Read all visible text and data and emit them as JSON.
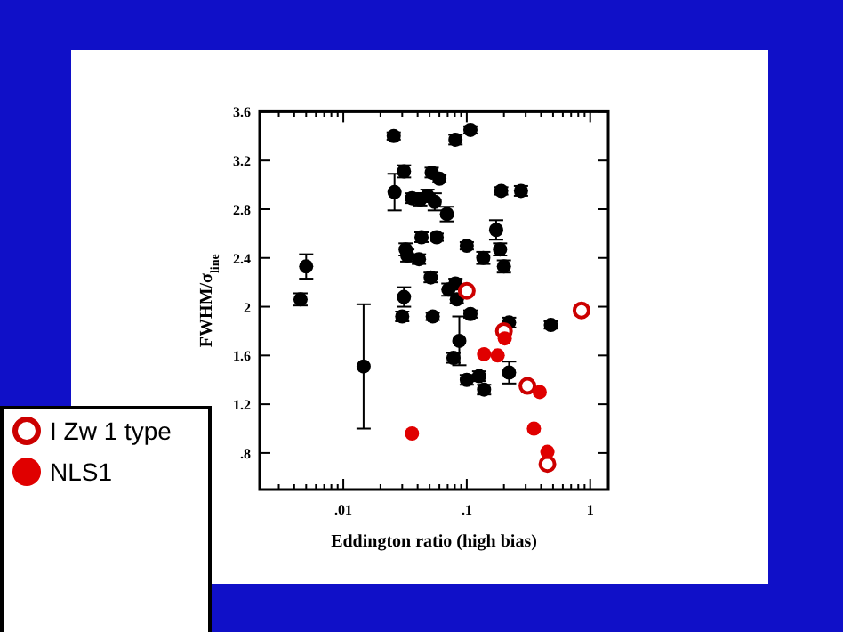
{
  "chart_data": {
    "type": "scatter",
    "xlabel": "Eddington ratio (high bias)",
    "ylabel": "FWHM/σ$_{line}$",
    "log": "x",
    "marker": "circle",
    "legend": "bottom left",
    "grid": false,
    "xlim": [
      0.0021,
      1.4
    ],
    "ylim": [
      0.5,
      3.6
    ],
    "xticks": [
      {
        "value": 0.003,
        "label": null
      },
      {
        "value": 0.004,
        "label": null
      },
      {
        "value": 0.005,
        "label": null
      },
      {
        "value": 0.006,
        "label": null
      },
      {
        "value": 0.007,
        "label": null
      },
      {
        "value": 0.008,
        "label": null
      },
      {
        "value": 0.009,
        "label": null
      },
      {
        "value": 0.01,
        "label": ".01"
      },
      {
        "value": 0.02,
        "label": null
      },
      {
        "value": 0.03,
        "label": null
      },
      {
        "value": 0.04,
        "label": null
      },
      {
        "value": 0.05,
        "label": null
      },
      {
        "value": 0.06,
        "label": null
      },
      {
        "value": 0.07,
        "label": null
      },
      {
        "value": 0.08,
        "label": null
      },
      {
        "value": 0.09,
        "label": null
      },
      {
        "value": 0.1,
        "label": ".1"
      },
      {
        "value": 0.2,
        "label": null
      },
      {
        "value": 0.3,
        "label": null
      },
      {
        "value": 0.4,
        "label": null
      },
      {
        "value": 0.5,
        "label": null
      },
      {
        "value": 0.6,
        "label": null
      },
      {
        "value": 0.7,
        "label": null
      },
      {
        "value": 0.8,
        "label": null
      },
      {
        "value": 0.9,
        "label": null
      },
      {
        "value": 1,
        "label": "1"
      }
    ],
    "yticks": [
      {
        "value": 0.8,
        "label": ".8"
      },
      1.2,
      1.6,
      2,
      2.4,
      2.8,
      3.2,
      3.6
    ],
    "series": [
      {
        "color": "#000000",
        "x": [
          0.0045,
          0.005,
          0.0146,
          0.0256,
          0.026,
          0.031,
          0.032,
          0.033,
          0.031,
          0.03,
          0.036,
          0.042,
          0.048,
          0.055,
          0.043,
          0.041,
          0.051,
          0.057,
          0.052,
          0.06,
          0.053,
          0.069,
          0.081,
          0.107,
          0.071,
          0.081,
          0.083,
          0.1,
          0.107,
          0.087,
          0.078,
          0.136,
          0.173,
          0.186,
          0.2,
          0.19,
          0.275,
          0.22,
          0.48,
          0.1,
          0.126,
          0.138,
          0.22
        ],
        "values": [
          2.06,
          2.33,
          1.51,
          3.4,
          2.94,
          3.11,
          2.47,
          2.42,
          2.08,
          1.92,
          2.89,
          2.88,
          2.91,
          2.86,
          2.57,
          2.39,
          2.24,
          2.57,
          3.1,
          3.05,
          1.92,
          2.76,
          3.37,
          3.45,
          2.14,
          2.19,
          2.06,
          2.5,
          1.94,
          1.72,
          1.58,
          2.4,
          2.63,
          2.47,
          2.33,
          2.95,
          2.95,
          1.87,
          1.85,
          1.4,
          1.43,
          1.32,
          1.46
        ],
        "errors": [
          0.05,
          0.1,
          [
            1.0,
            2.02
          ],
          0.03,
          0.15,
          0.05,
          0.05,
          0.05,
          0.08,
          0.04,
          0.04,
          0.05,
          0.05,
          0.07,
          0.04,
          0.04,
          0.04,
          0.03,
          0.04,
          0.03,
          0.03,
          0.06,
          0.04,
          0.03,
          0.05,
          0.04,
          0.03,
          0.03,
          0.03,
          0.2,
          0.04,
          0.05,
          0.08,
          0.05,
          0.05,
          0.03,
          0.04,
          0.04,
          0.03,
          0.04,
          0.04,
          0.04,
          0.09
        ]
      },
      {
        "name": "I Zw 1 type",
        "color": "#cc0000",
        "x": [
          0.1,
          0.2,
          0.31,
          0.45,
          0.85
        ],
        "values": [
          2.13,
          1.8,
          1.35,
          0.71,
          1.97
        ]
      },
      {
        "name": "NLS1",
        "color": "#e00000",
        "x": [
          0.036,
          0.138,
          0.178,
          0.203,
          0.39,
          0.35,
          0.45
        ],
        "values": [
          0.96,
          1.61,
          1.6,
          1.74,
          1.3,
          1.0,
          0.81
        ]
      }
    ]
  }
}
